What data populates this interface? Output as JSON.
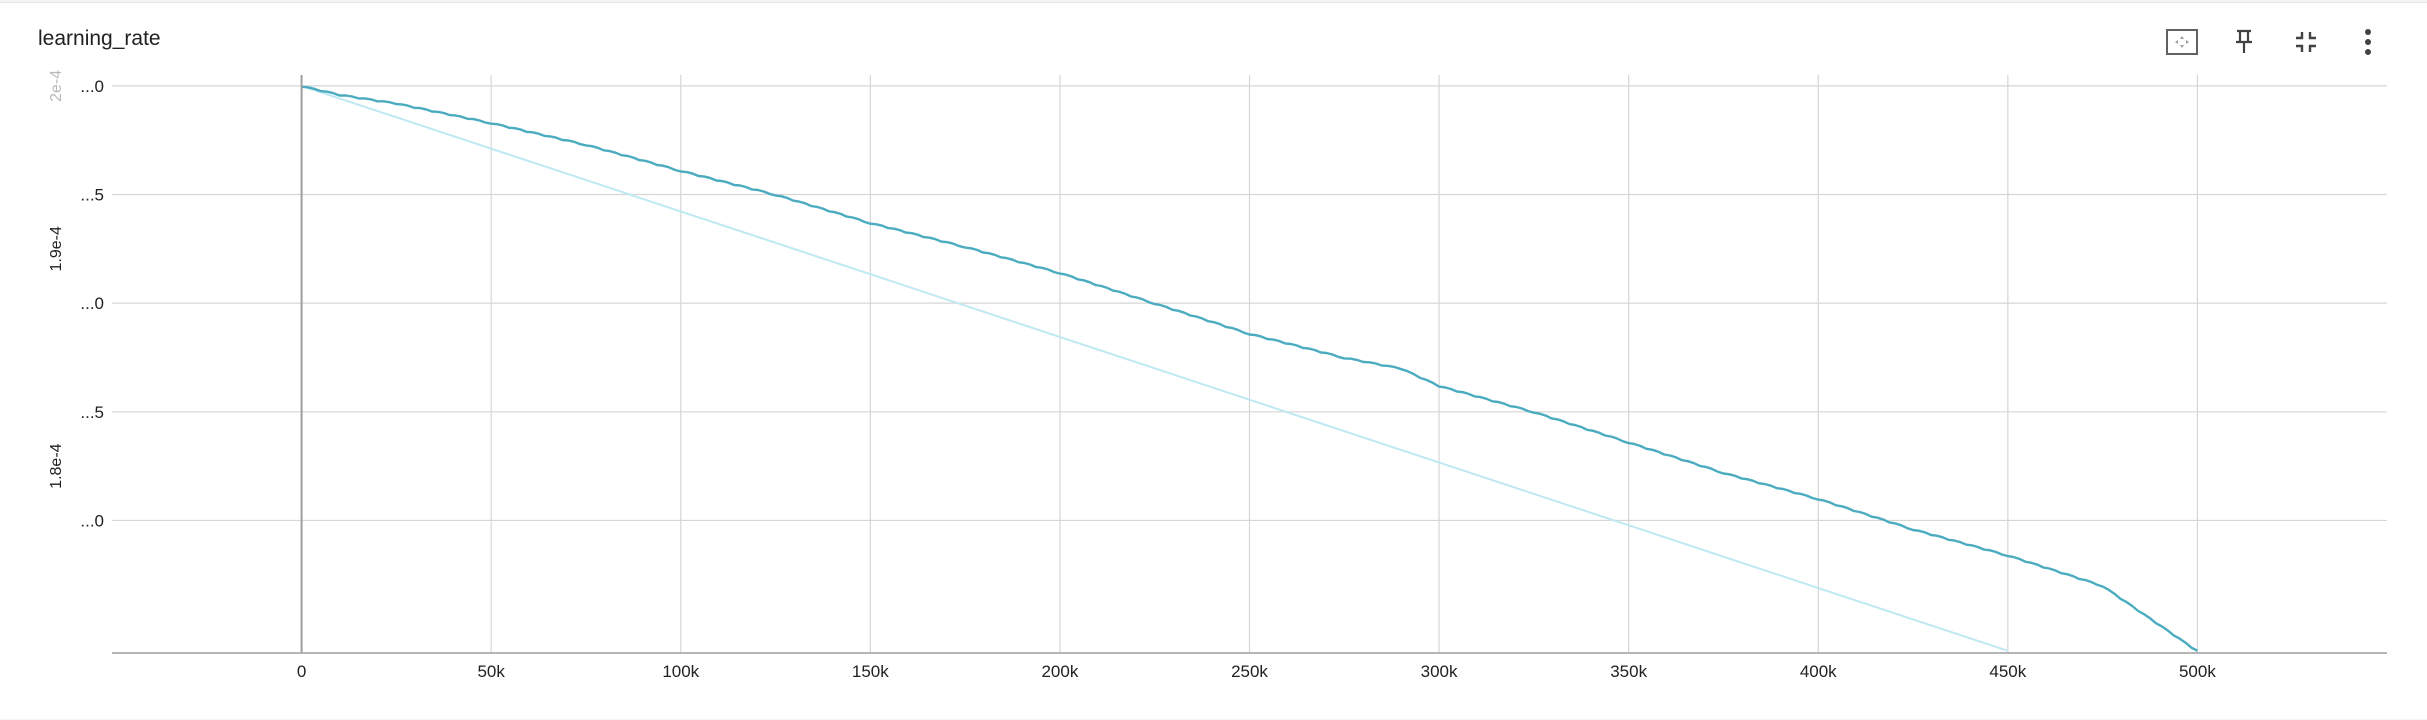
{
  "card": {
    "title": "learning_rate"
  },
  "toolbar": {
    "icons": [
      "fit-domain-icon",
      "pin-icon",
      "collapse-icon",
      "more-vert-icon"
    ]
  },
  "colors": {
    "smoothed": "#4bacc0",
    "raw": "#bfe9f1",
    "grid": "#d6d6d6",
    "axis": "#9e9e9e"
  },
  "chart_data": {
    "type": "line",
    "title": "learning_rate",
    "xlabel": "",
    "ylabel": "",
    "xlim": [
      -50000,
      550000
    ],
    "ylim": [
      0.0001739,
      0.0002005
    ],
    "grid": true,
    "x_ticks": [
      "0",
      "50k",
      "100k",
      "150k",
      "200k",
      "250k",
      "300k",
      "350k",
      "400k",
      "450k",
      "500k"
    ],
    "x_tick_values": [
      0,
      50000,
      100000,
      150000,
      200000,
      250000,
      300000,
      350000,
      400000,
      450000,
      500000
    ],
    "y_ticks": [
      "...0",
      "...5",
      "...0",
      "...5",
      "...0"
    ],
    "y_tick_values": [
      0.0002,
      0.000195,
      0.00019,
      0.000185,
      0.00018
    ],
    "y_major_labels": [
      {
        "text": "2e-4",
        "value": 0.0002,
        "faded": true
      },
      {
        "text": "1.9e-4",
        "value": 0.0001925,
        "faded": false
      },
      {
        "text": "1.8e-4",
        "value": 0.0001825,
        "faded": false
      }
    ],
    "series": [
      {
        "role": "raw",
        "x": [
          0,
          450000
        ],
        "y": [
          0.0002,
          0.000174
        ]
      },
      {
        "role": "smoothed",
        "x": [
          0,
          10000,
          25000,
          50000,
          75000,
          100000,
          125000,
          150000,
          175000,
          200000,
          225000,
          250000,
          275000,
          290000,
          300000,
          325000,
          350000,
          375000,
          400000,
          425000,
          450000,
          475000,
          500000
        ],
        "y": [
          0.0002,
          0.0001996,
          0.0001992,
          0.0001983,
          0.0001973,
          0.0001961,
          0.000195,
          0.0001937,
          0.0001926,
          0.0001914,
          0.00019,
          0.0001886,
          0.0001875,
          0.000187,
          0.0001862,
          0.000185,
          0.0001836,
          0.0001822,
          0.000181,
          0.0001796,
          0.0001784,
          0.000177,
          0.000174
        ]
      }
    ]
  }
}
